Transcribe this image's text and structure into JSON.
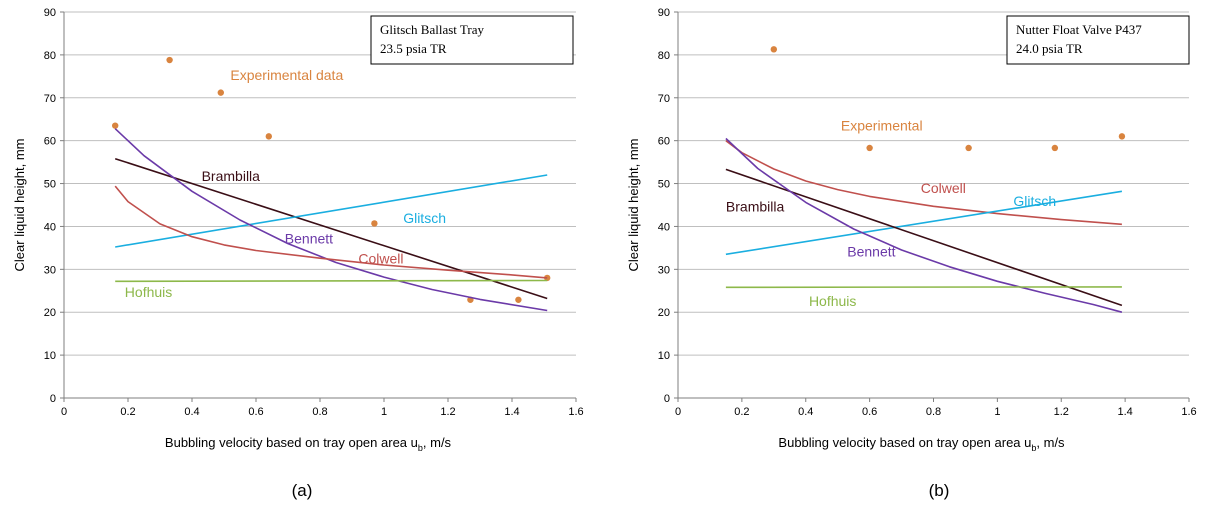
{
  "chart_data": [
    {
      "type": "line",
      "panel_label": "(a)",
      "info_box": [
        "Glitsch Ballast Tray",
        "23.5 psia TR"
      ],
      "xlabel": "Bubbling velocity based on tray open area u",
      "xlabel_sub": "b",
      "xlabel_suffix": ", m/s",
      "ylabel": "Clear liquid height, mm",
      "xlim": [
        0,
        1.6
      ],
      "ylim": [
        0,
        90
      ],
      "xticks": [
        0,
        0.2,
        0.4,
        0.6,
        0.8,
        1,
        1.2,
        1.4,
        1.6
      ],
      "xtick_labels": [
        "0",
        "0.2",
        "0.4",
        "0.6",
        "0.8",
        "1",
        "1.2",
        "1.4",
        "1.6"
      ],
      "yticks": [
        0,
        10,
        20,
        30,
        40,
        50,
        60,
        70,
        80,
        90
      ],
      "ytick_labels": [
        "0",
        "10",
        "20",
        "30",
        "40",
        "50",
        "60",
        "70",
        "80",
        "90"
      ],
      "grid": "horizontal",
      "series": [
        {
          "name": "Experimental data",
          "kind": "scatter",
          "color": "#D9843F",
          "label_at": [
            0.52,
            74.2
          ],
          "x": [
            0.16,
            0.33,
            0.49,
            0.64,
            0.97,
            1.27,
            1.42,
            1.51
          ],
          "y": [
            63.5,
            78.8,
            71.2,
            61.0,
            40.7,
            22.9,
            22.9,
            28.0
          ]
        },
        {
          "name": "Brambilla",
          "kind": "line",
          "color": "#3A0E16",
          "label_at": [
            0.43,
            50.6
          ],
          "x": [
            0.16,
            1.51
          ],
          "y": [
            55.8,
            23.2
          ]
        },
        {
          "name": "Glitsch",
          "kind": "line",
          "color": "#1AAEE0",
          "label_at": [
            1.06,
            40.8
          ],
          "x": [
            0.16,
            1.51
          ],
          "y": [
            35.2,
            52.0
          ]
        },
        {
          "name": "Bennett",
          "kind": "line",
          "color": "#6B3AA8",
          "label_at": [
            0.69,
            36.0
          ],
          "x": [
            0.16,
            0.25,
            0.4,
            0.55,
            0.7,
            0.85,
            1.0,
            1.15,
            1.3,
            1.51
          ],
          "y": [
            62.8,
            56.5,
            48.2,
            41.5,
            36.0,
            31.6,
            28.2,
            25.3,
            23.0,
            20.4
          ]
        },
        {
          "name": "Colwell",
          "kind": "line",
          "color": "#C0504D",
          "label_at": [
            0.92,
            31.4
          ],
          "x": [
            0.16,
            0.2,
            0.3,
            0.4,
            0.5,
            0.6,
            0.8,
            1.0,
            1.2,
            1.4,
            1.51
          ],
          "y": [
            49.4,
            45.8,
            40.6,
            37.6,
            35.7,
            34.4,
            32.6,
            31.0,
            29.8,
            28.7,
            28.0
          ]
        },
        {
          "name": "Hofhuis",
          "kind": "line",
          "color": "#8DB84A",
          "label_at": [
            0.19,
            23.5
          ],
          "x": [
            0.16,
            1.51
          ],
          "y": [
            27.2,
            27.4
          ]
        }
      ]
    },
    {
      "type": "line",
      "panel_label": "(b)",
      "info_box": [
        "Nutter Float Valve P437",
        "24.0 psia TR"
      ],
      "xlabel": "Bubbling velocity based on tray open area u",
      "xlabel_sub": "b",
      "xlabel_suffix": ", m/s",
      "ylabel": "Clear liquid height, mm",
      "xlim": [
        0,
        1.6
      ],
      "ylim": [
        0,
        90
      ],
      "xticks": [
        0,
        0.2,
        0.4,
        0.6,
        0.8,
        1,
        1.2,
        1.4,
        1.6
      ],
      "xtick_labels": [
        "0",
        "0.2",
        "0.4",
        "0.6",
        "0.8",
        "1",
        "1.2",
        "1.4",
        "1.6"
      ],
      "yticks": [
        0,
        10,
        20,
        30,
        40,
        50,
        60,
        70,
        80,
        90
      ],
      "ytick_labels": [
        "0",
        "10",
        "20",
        "30",
        "40",
        "50",
        "60",
        "70",
        "80",
        "90"
      ],
      "grid": "horizontal",
      "series": [
        {
          "name": "Experimental",
          "kind": "scatter",
          "color": "#D9843F",
          "label_at": [
            0.51,
            62.4
          ],
          "x": [
            0.3,
            0.6,
            0.91,
            1.18,
            1.39
          ],
          "y": [
            81.3,
            58.3,
            58.3,
            58.3,
            61.0
          ]
        },
        {
          "name": "Colwell",
          "kind": "line",
          "color": "#C0504D",
          "label_at": [
            0.76,
            47.8
          ],
          "x": [
            0.15,
            0.2,
            0.3,
            0.4,
            0.5,
            0.6,
            0.8,
            1.0,
            1.2,
            1.39
          ],
          "y": [
            60.0,
            57.2,
            53.4,
            50.6,
            48.6,
            47.0,
            44.7,
            43.0,
            41.6,
            40.5
          ]
        },
        {
          "name": "Glitsch",
          "kind": "line",
          "color": "#1AAEE0",
          "label_at": [
            1.05,
            44.8
          ],
          "x": [
            0.15,
            1.39
          ],
          "y": [
            33.5,
            48.2
          ]
        },
        {
          "name": "Brambilla",
          "kind": "line",
          "color": "#3A0E16",
          "label_at": [
            0.15,
            43.5
          ],
          "x": [
            0.15,
            1.39
          ],
          "y": [
            53.3,
            21.6
          ]
        },
        {
          "name": "Bennett",
          "kind": "line",
          "color": "#6B3AA8",
          "label_at": [
            0.53,
            33.0
          ],
          "x": [
            0.15,
            0.25,
            0.4,
            0.55,
            0.7,
            0.85,
            1.0,
            1.15,
            1.3,
            1.39
          ],
          "y": [
            60.5,
            53.5,
            45.6,
            39.4,
            34.5,
            30.6,
            27.2,
            24.4,
            21.8,
            20.0
          ]
        },
        {
          "name": "Hofhuis",
          "kind": "line",
          "color": "#8DB84A",
          "label_at": [
            0.41,
            21.4
          ],
          "x": [
            0.15,
            1.39
          ],
          "y": [
            25.8,
            25.9
          ]
        }
      ]
    }
  ]
}
